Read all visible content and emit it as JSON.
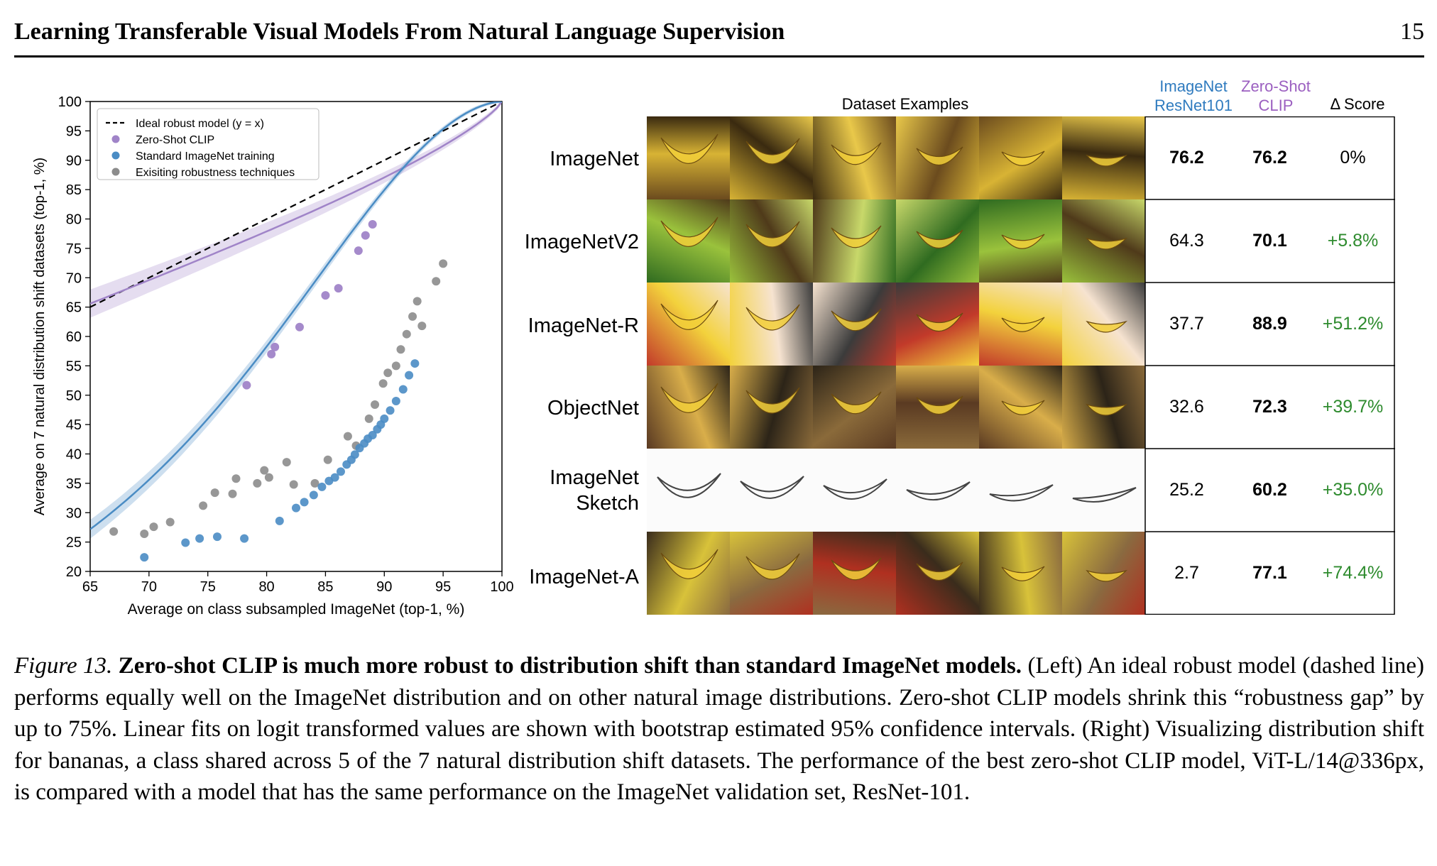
{
  "header": {
    "title": "Learning Transferable Visual Models From Natural Language Supervision",
    "page_number": "15"
  },
  "chart_data": {
    "type": "scatter",
    "xlabel": "Average on class subsampled ImageNet (top-1, %)",
    "ylabel": "Average on 7 natural distribution shift datasets (top-1, %)",
    "xlim": [
      65,
      100
    ],
    "ylim": [
      20,
      100
    ],
    "xticks": [
      65,
      70,
      75,
      80,
      85,
      90,
      95,
      100
    ],
    "yticks": [
      20,
      25,
      30,
      35,
      40,
      45,
      50,
      55,
      60,
      65,
      70,
      75,
      80,
      85,
      90,
      95,
      100
    ],
    "legend_position": "top-left",
    "series": [
      {
        "name": "Ideal robust model (y = x)",
        "kind": "line",
        "style": "dashed",
        "color": "#000000",
        "x": [
          65,
          100
        ],
        "y": [
          65,
          100
        ]
      },
      {
        "name": "Zero-Shot CLIP",
        "kind": "scatter",
        "color": "#a084c8",
        "x": [
          78.3,
          80.4,
          80.7,
          82.8,
          85.0,
          86.1,
          87.8,
          88.4,
          89.0
        ],
        "y": [
          51.7,
          57.0,
          58.2,
          61.6,
          67.0,
          68.2,
          74.6,
          77.2,
          79.1
        ]
      },
      {
        "name": "Standard ImageNet training",
        "kind": "scatter",
        "color": "#4a8cc4",
        "x": [
          69.6,
          73.1,
          74.3,
          75.8,
          78.1,
          81.1,
          82.5,
          83.2,
          84.0,
          84.7,
          85.3,
          85.8,
          86.3,
          86.8,
          87.2,
          87.5,
          87.9,
          88.3,
          88.6,
          89.0,
          89.4,
          89.7,
          90.0,
          90.5,
          91.0,
          91.6,
          92.1,
          92.6
        ],
        "y": [
          22.4,
          24.9,
          25.6,
          25.9,
          25.6,
          28.6,
          30.8,
          31.8,
          33.0,
          34.4,
          35.4,
          36.0,
          37.0,
          38.2,
          39.0,
          39.9,
          41.0,
          41.8,
          42.6,
          43.2,
          44.2,
          45.0,
          46.0,
          47.4,
          49.0,
          51.0,
          53.4,
          55.4
        ]
      },
      {
        "name": "Exisiting robustness techniques",
        "kind": "scatter",
        "color": "#8c8c8c",
        "x": [
          67.0,
          69.6,
          70.4,
          71.8,
          74.6,
          75.6,
          77.1,
          77.4,
          79.2,
          79.8,
          80.2,
          81.7,
          82.3,
          84.1,
          85.2,
          86.9,
          87.6,
          88.7,
          89.2,
          89.9,
          90.3,
          91.0,
          91.4,
          91.9,
          92.4,
          92.8,
          93.2,
          94.4,
          95.0
        ],
        "y": [
          26.8,
          26.4,
          27.6,
          28.4,
          31.2,
          33.4,
          33.2,
          35.8,
          35.0,
          37.2,
          36.0,
          38.6,
          34.8,
          35.0,
          39.0,
          43.0,
          41.4,
          46.0,
          48.4,
          52.0,
          53.8,
          55.0,
          57.8,
          60.4,
          63.4,
          66.0,
          61.8,
          69.4,
          72.4
        ]
      },
      {
        "name": "Zero-Shot CLIP fit",
        "kind": "fit_line",
        "color": "#a084c8"
      },
      {
        "name": "Standard ImageNet training fit",
        "kind": "fit_line",
        "color": "#4a8cc4"
      }
    ]
  },
  "table": {
    "section_label": "Dataset Examples",
    "columns": [
      {
        "line1": "ImageNet",
        "line2": "ResNet101",
        "color": "#2f7bbf"
      },
      {
        "line1": "Zero-Shot",
        "line2": "CLIP",
        "color": "#9b5fc0"
      },
      {
        "line1": "Δ Score",
        "line2": "",
        "color": "#000000"
      }
    ],
    "rows": [
      {
        "dataset": "ImageNet",
        "resnet": "76.2",
        "clip": "76.2",
        "delta": "0%",
        "delta_color": "#000000",
        "resnet_bold": true,
        "image_style": "photo"
      },
      {
        "dataset": "ImageNetV2",
        "resnet": "64.3",
        "clip": "70.1",
        "delta": "+5.8%",
        "delta_color": "#2e8b2e",
        "resnet_bold": false,
        "image_style": "photo"
      },
      {
        "dataset": "ImageNet-R",
        "resnet": "37.7",
        "clip": "88.9",
        "delta": "+51.2%",
        "delta_color": "#2e8b2e",
        "resnet_bold": false,
        "image_style": "rendition"
      },
      {
        "dataset": "ObjectNet",
        "resnet": "32.6",
        "clip": "72.3",
        "delta": "+39.7%",
        "delta_color": "#2e8b2e",
        "resnet_bold": false,
        "image_style": "photo"
      },
      {
        "dataset": "ImageNet\nSketch",
        "dataset_line1": "ImageNet",
        "dataset_line2": "Sketch",
        "resnet": "25.2",
        "clip": "60.2",
        "delta": "+35.0%",
        "delta_color": "#2e8b2e",
        "resnet_bold": false,
        "image_style": "sketch"
      },
      {
        "dataset": "ImageNet-A",
        "resnet": "2.7",
        "clip": "77.1",
        "delta": "+74.4%",
        "delta_color": "#2e8b2e",
        "resnet_bold": false,
        "image_style": "photo"
      }
    ]
  },
  "caption": {
    "figure_label": "Figure 13.",
    "lead": "Zero-shot CLIP is much more robust to distribution shift than standard ImageNet models.",
    "body": "(Left) An ideal robust model (dashed line) performs equally well on the ImageNet distribution and on other natural image distributions. Zero-shot CLIP models shrink this “robustness gap” by up to 75%. Linear fits on logit transformed values are shown with bootstrap estimated 95% confidence intervals. (Right) Visualizing distribution shift for bananas, a class shared across 5 of the 7 natural distribution shift datasets. The performance of the best zero-shot CLIP model, ViT-L/14@336px, is compared with a model that has the same performance on the ImageNet validation set, ResNet-101."
  }
}
